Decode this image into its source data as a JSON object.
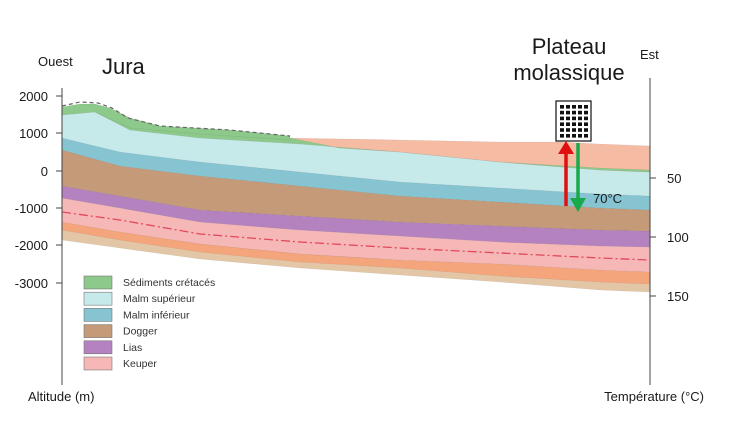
{
  "labels": {
    "west": "Ouest",
    "east": "Est",
    "jura": "Jura",
    "plateau_line1": "Plateau",
    "plateau_line2": "molassique",
    "altitude_axis": "Altitude (m)",
    "temperature_axis": "Température (°C)",
    "temperature_marker": "70°C"
  },
  "altitude_ticks": [
    "2000",
    "1000",
    "0",
    "-1000",
    "-2000",
    "-3000"
  ],
  "temperature_ticks": [
    "50",
    "100",
    "150"
  ],
  "legend": [
    {
      "label": "Sédiments crétacés",
      "color": "#8cc98a"
    },
    {
      "label": "Malm supérieur",
      "color": "#c6e9ea"
    },
    {
      "label": "Malm inférieur",
      "color": "#86c4d2"
    },
    {
      "label": "Dogger",
      "color": "#c49a78"
    },
    {
      "label": "Lias",
      "color": "#b482bf"
    },
    {
      "label": "Keuper",
      "color": "#f6b7b7"
    }
  ],
  "layer_colors": {
    "molasse": "#f6bba3",
    "muschelkalk": "#f5a57c",
    "basement": "#e3c6a6",
    "hot_arrow": "#e01010",
    "cold_arrow": "#19a84a",
    "dashed_line": "#e2495a"
  }
}
